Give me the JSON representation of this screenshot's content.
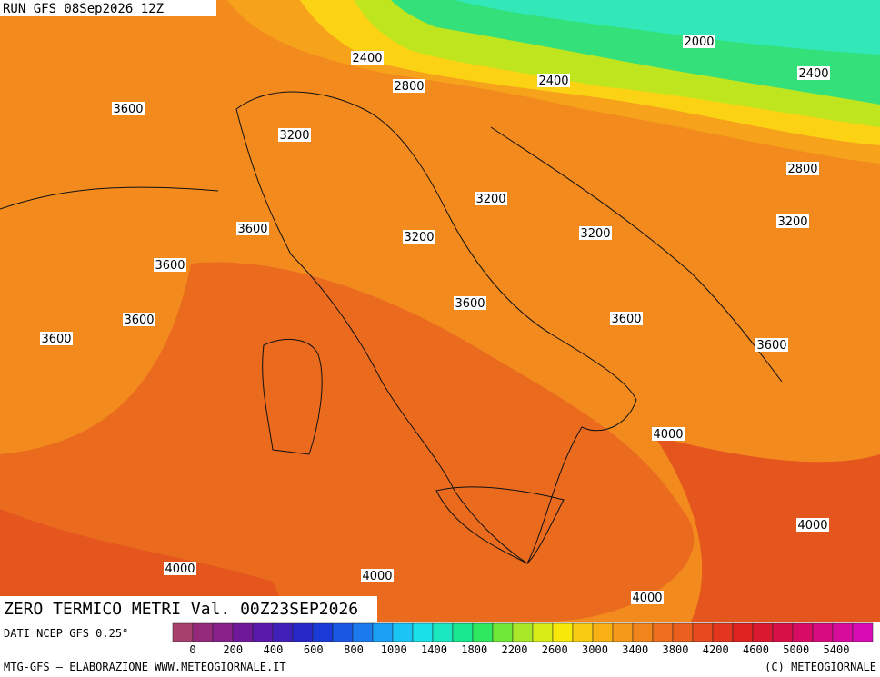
{
  "header": {
    "run": "RUN GFS 08Sep2026 12Z"
  },
  "contour_labels": [
    "2000",
    "2400",
    "2400",
    "2400",
    "2800",
    "3600",
    "3200",
    "2800",
    "3200",
    "3200",
    "3600",
    "3200",
    "3200",
    "3600",
    "3600",
    "3600",
    "3600",
    "3600",
    "3600",
    "4000",
    "4000",
    "4000",
    "4000",
    "4000"
  ],
  "title": "ZERO TERMICO METRI Val. 00Z23SEP2026",
  "source": "DATI NCEP GFS 0.25°",
  "legend": {
    "labels": [
      "0",
      "200",
      "400",
      "600",
      "800",
      "1000",
      "1400",
      "1800",
      "2200",
      "2600",
      "3000",
      "3400",
      "3800",
      "4200",
      "4600",
      "5000",
      "5400"
    ]
  },
  "footer": {
    "left": "MTG-GFS — ELABORAZIONE WWW.METEOGIORNALE.IT",
    "right": "(C) METEOGIORNALE"
  }
}
